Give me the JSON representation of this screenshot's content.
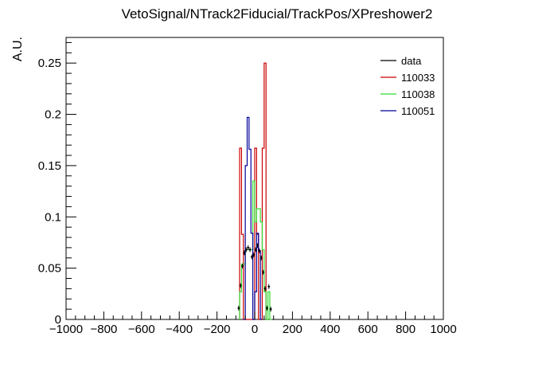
{
  "chart_data": {
    "type": "line",
    "title": "VetoSignal/NTrack2Fiducial/TrackPos/XPreshower2",
    "xlabel": "",
    "ylabel": "A.U.",
    "xlim": [
      -1000,
      1000
    ],
    "ylim": [
      0,
      0.275
    ],
    "bin_width": 10,
    "x_ticks": [
      -1000,
      -800,
      -600,
      -400,
      -200,
      0,
      200,
      400,
      600,
      800,
      1000
    ],
    "x_tick_labels": [
      "−1000",
      "−800",
      "−600",
      "−400",
      "−200",
      "0",
      "200",
      "400",
      "600",
      "800",
      "1000"
    ],
    "y_ticks": [
      0,
      0.05,
      0.1,
      0.15,
      0.2,
      0.25
    ],
    "y_tick_labels": [
      "0",
      "0.05",
      "0.1",
      "0.15",
      "0.2",
      "0.25"
    ],
    "legend_position": "top-right",
    "series": [
      {
        "name": "110033",
        "color": "#cc0000",
        "bins": [
          {
            "x": -80,
            "y": 0.167
          },
          {
            "x": -70,
            "y": 0.083
          },
          {
            "x": -60,
            "y": 0.0
          },
          {
            "x": -50,
            "y": 0.0
          },
          {
            "x": -40,
            "y": 0.0
          },
          {
            "x": -30,
            "y": 0.0
          },
          {
            "x": -20,
            "y": 0.0
          },
          {
            "x": -10,
            "y": 0.0
          },
          {
            "x": 0,
            "y": 0.167
          },
          {
            "x": 10,
            "y": 0.083
          },
          {
            "x": 20,
            "y": 0.0
          },
          {
            "x": 30,
            "y": 0.0
          },
          {
            "x": 40,
            "y": 0.167
          },
          {
            "x": 50,
            "y": 0.25
          },
          {
            "x": 60,
            "y": 0.0
          }
        ]
      },
      {
        "name": "110038",
        "color": "#33dd33",
        "bins": [
          {
            "x": -80,
            "y": 0.027
          },
          {
            "x": -70,
            "y": 0.054
          },
          {
            "x": -60,
            "y": 0.054
          },
          {
            "x": -50,
            "y": 0.068
          },
          {
            "x": -40,
            "y": 0.068
          },
          {
            "x": -30,
            "y": 0.068
          },
          {
            "x": -20,
            "y": 0.068
          },
          {
            "x": -10,
            "y": 0.135
          },
          {
            "x": 0,
            "y": 0.095
          },
          {
            "x": 10,
            "y": 0.108
          },
          {
            "x": 20,
            "y": 0.108
          },
          {
            "x": 30,
            "y": 0.095
          },
          {
            "x": 40,
            "y": 0.068
          },
          {
            "x": 50,
            "y": 0.027
          },
          {
            "x": 60,
            "y": 0.0
          },
          {
            "x": 70,
            "y": 0.027
          },
          {
            "x": 80,
            "y": 0.0
          }
        ]
      },
      {
        "name": "110051",
        "color": "#000099",
        "bins": [
          {
            "x": -60,
            "y": 0.0
          },
          {
            "x": -50,
            "y": 0.15
          },
          {
            "x": -40,
            "y": 0.197
          },
          {
            "x": -30,
            "y": 0.166
          },
          {
            "x": -20,
            "y": 0.084
          },
          {
            "x": -10,
            "y": 0.0
          },
          {
            "x": 0,
            "y": 0.027
          },
          {
            "x": 10,
            "y": 0.084
          },
          {
            "x": 20,
            "y": 0.067
          },
          {
            "x": 30,
            "y": 0.0
          }
        ]
      },
      {
        "name": "data",
        "color": "#000000",
        "style": "points",
        "points": [
          {
            "x": -90,
            "y": 0.011
          },
          {
            "x": -80,
            "y": 0.033
          },
          {
            "x": -70,
            "y": 0.052
          },
          {
            "x": -60,
            "y": 0.065
          },
          {
            "x": -50,
            "y": 0.068
          },
          {
            "x": -40,
            "y": 0.07
          },
          {
            "x": -30,
            "y": 0.068
          },
          {
            "x": -20,
            "y": 0.061
          },
          {
            "x": -10,
            "y": 0.063
          },
          {
            "x": 0,
            "y": 0.068
          },
          {
            "x": 10,
            "y": 0.072
          },
          {
            "x": 20,
            "y": 0.067
          },
          {
            "x": 30,
            "y": 0.06
          },
          {
            "x": 40,
            "y": 0.046
          },
          {
            "x": 50,
            "y": 0.03
          },
          {
            "x": 60,
            "y": 0.011
          },
          {
            "x": 70,
            "y": 0.032
          },
          {
            "x": 80,
            "y": 0.01
          }
        ]
      }
    ],
    "legend_order": [
      "data",
      "110033",
      "110038",
      "110051"
    ]
  }
}
